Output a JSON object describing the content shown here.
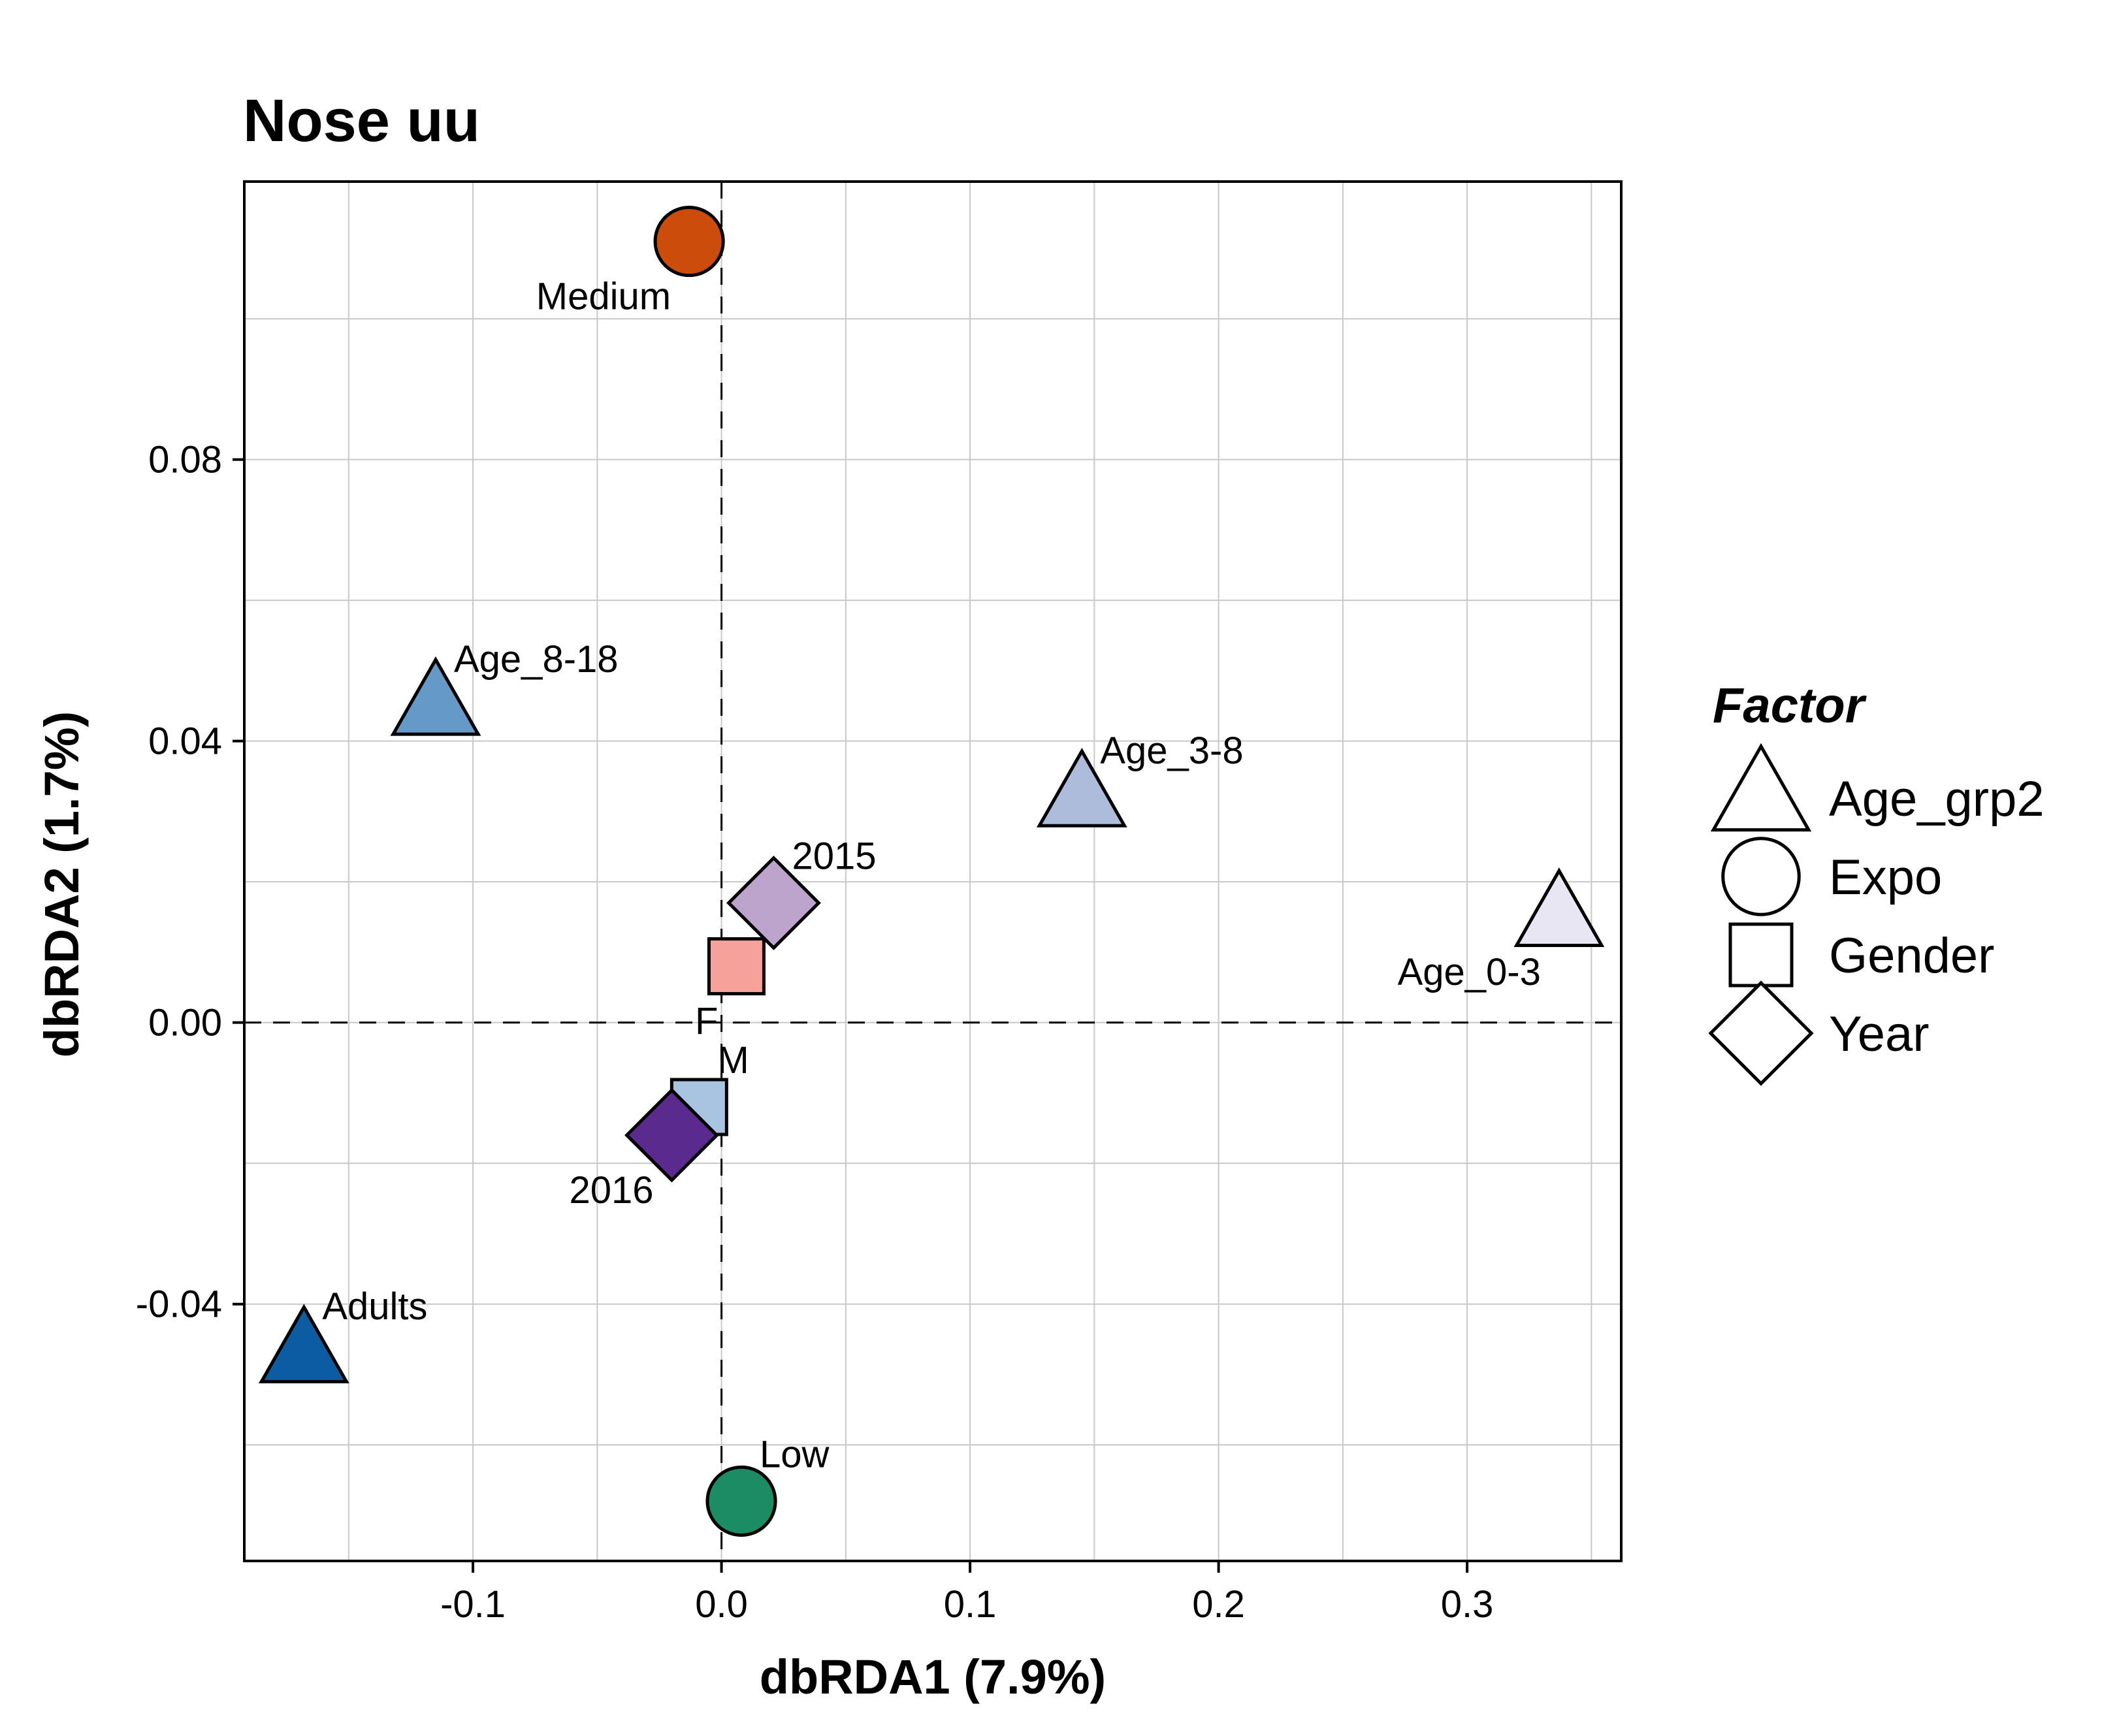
{
  "chart_data": {
    "type": "scatter",
    "title": "Nose uu",
    "xlabel": "dbRDA1 (7.9%)",
    "ylabel": "dbRDA2 (1.7%)",
    "xlim": [
      -0.192,
      0.362
    ],
    "ylim": [
      -0.0765,
      0.1195
    ],
    "x_ticks": [
      -0.1,
      0.0,
      0.1,
      0.2,
      0.3
    ],
    "x_tick_labels": [
      "-0.1",
      "0.0",
      "0.1",
      "0.2",
      "0.3"
    ],
    "y_ticks": [
      -0.04,
      0.0,
      0.04,
      0.08
    ],
    "y_tick_labels": [
      "-0.04",
      "0.00",
      "0.04",
      "0.08"
    ],
    "grid": true,
    "zero_lines": "dashed",
    "legend": {
      "title": "Factor",
      "placement": "right",
      "entries": [
        {
          "label": "Age_grp2",
          "shape": "triangle"
        },
        {
          "label": "Expo",
          "shape": "circle"
        },
        {
          "label": "Gender",
          "shape": "square"
        },
        {
          "label": "Year",
          "shape": "diamond"
        }
      ]
    },
    "points": [
      {
        "label": "Medium",
        "factor": "Expo",
        "shape": "circle",
        "x": -0.013,
        "y": 0.111,
        "color": "#cc4c0c",
        "label_pos": "below-left"
      },
      {
        "label": "Low",
        "factor": "Expo",
        "shape": "circle",
        "x": 0.008,
        "y": -0.068,
        "color": "#1b8c64",
        "label_pos": "above-right"
      },
      {
        "label": "Age_8-18",
        "factor": "Age_grp2",
        "shape": "triangle",
        "x": -0.115,
        "y": 0.045,
        "color": "#6499c8",
        "label_pos": "above-right"
      },
      {
        "label": "Age_3-8",
        "factor": "Age_grp2",
        "shape": "triangle",
        "x": 0.145,
        "y": 0.032,
        "color": "#aebcdc",
        "label_pos": "above-right"
      },
      {
        "label": "Age_0-3",
        "factor": "Age_grp2",
        "shape": "triangle",
        "x": 0.337,
        "y": 0.015,
        "color": "#e8e6f2",
        "label_pos": "below-left"
      },
      {
        "label": "Adults",
        "factor": "Age_grp2",
        "shape": "triangle",
        "x": -0.168,
        "y": -0.047,
        "color": "#0c5ca4",
        "label_pos": "above-right"
      },
      {
        "label": "2015",
        "factor": "Year",
        "shape": "diamond",
        "x": 0.021,
        "y": 0.017,
        "color": "#bca4cc",
        "label_pos": "above-right"
      },
      {
        "label": "F",
        "factor": "Gender",
        "shape": "square",
        "x": 0.006,
        "y": 0.008,
        "color": "#f6a29a",
        "label_pos": "below-left"
      },
      {
        "label": "M",
        "factor": "Gender",
        "shape": "square",
        "x": -0.009,
        "y": -0.012,
        "color": "#a8c4e0",
        "label_pos": "above-right"
      },
      {
        "label": "2016",
        "factor": "Year",
        "shape": "diamond",
        "x": -0.02,
        "y": -0.016,
        "color": "#5a2a8e",
        "label_pos": "below-left"
      }
    ]
  }
}
